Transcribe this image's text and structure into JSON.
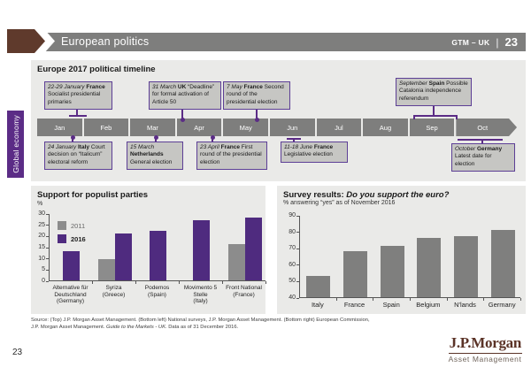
{
  "header": {
    "title": "European politics",
    "gtm_label": "GTM – UK",
    "divider": "|",
    "page": "23"
  },
  "sidebar": {
    "label": "Global economy"
  },
  "timeline": {
    "title": "Europe 2017 political timeline",
    "months": [
      "Jan",
      "Feb",
      "Mar",
      "Apr",
      "May",
      "Jun",
      "Jul",
      "Aug",
      "Sep",
      "Oct"
    ],
    "events_top": [
      {
        "date": "22-29 January",
        "country": "France",
        "desc": "Socialist presidential primaries"
      },
      {
        "date": "31 March",
        "country": "UK",
        "desc": "“Deadline” for formal activation of Article 50"
      },
      {
        "date": "7 May",
        "country": "France",
        "desc": "Second round of the presidential election"
      },
      {
        "date": "September",
        "country": "Spain",
        "desc": "Possible Catalonia independence referendum"
      }
    ],
    "events_bottom": [
      {
        "date": "24 January",
        "country": "Italy",
        "desc": "Court decision on “Italicum” electoral reform"
      },
      {
        "date": "15 March",
        "country": "Netherlands",
        "desc": "General election"
      },
      {
        "date": "23 April",
        "country": "France",
        "desc": "First round of the presidential election"
      },
      {
        "date": "11-18 June",
        "country": "France",
        "desc": "Legislative election"
      },
      {
        "date": "October",
        "country": "Germany",
        "desc": "Latest date for election"
      }
    ]
  },
  "chart_data": [
    {
      "type": "bar",
      "title": "Support for populist parties",
      "ylabel": "%",
      "ylim": [
        0,
        30
      ],
      "yticks": [
        0,
        5,
        10,
        15,
        20,
        25,
        30
      ],
      "categories": [
        [
          "Alternative für",
          "Deutschland",
          "(Germany)"
        ],
        [
          "Syriza",
          "(Greece)"
        ],
        [
          "Podemos",
          "(Spain)"
        ],
        [
          "Movimento 5",
          "Stelle",
          "(Italy)"
        ],
        [
          "Front National",
          "(France)"
        ]
      ],
      "series": [
        {
          "name": "2011",
          "color": "#8c8c8c",
          "values": [
            null,
            9.5,
            null,
            null,
            16
          ]
        },
        {
          "name": "2016",
          "color": "#4f2b7f",
          "values": [
            13,
            21,
            22,
            27,
            28
          ]
        }
      ],
      "legend_position": "top-left",
      "grid": false
    },
    {
      "type": "bar",
      "title_prefix": "Survey results: ",
      "title_question": "Do you support the euro?",
      "subtitle": "% answering “yes” as of November 2016",
      "ylim": [
        40,
        90
      ],
      "yticks": [
        40,
        50,
        60,
        70,
        80,
        90
      ],
      "categories": [
        "Italy",
        "France",
        "Spain",
        "Belgium",
        "N'lands",
        "Germany"
      ],
      "values": [
        53,
        68,
        71,
        76,
        77,
        81
      ],
      "bar_color": "#7f7f7e",
      "grid": false
    }
  ],
  "source": {
    "line1": "Source: (Top) J.P. Morgan Asset Management. (Bottom left) National surveys, J.P. Morgan Asset Management. (Bottom right) European Commission,",
    "line2_pre": "J.P. Morgan Asset Management. ",
    "line2_italic": "Guide to the Markets - UK.",
    "line2_post": " Data as of 31 December 2016."
  },
  "footer": {
    "page_number": "23",
    "logo_name": "J.P.Morgan",
    "logo_sub": "Asset Management"
  }
}
